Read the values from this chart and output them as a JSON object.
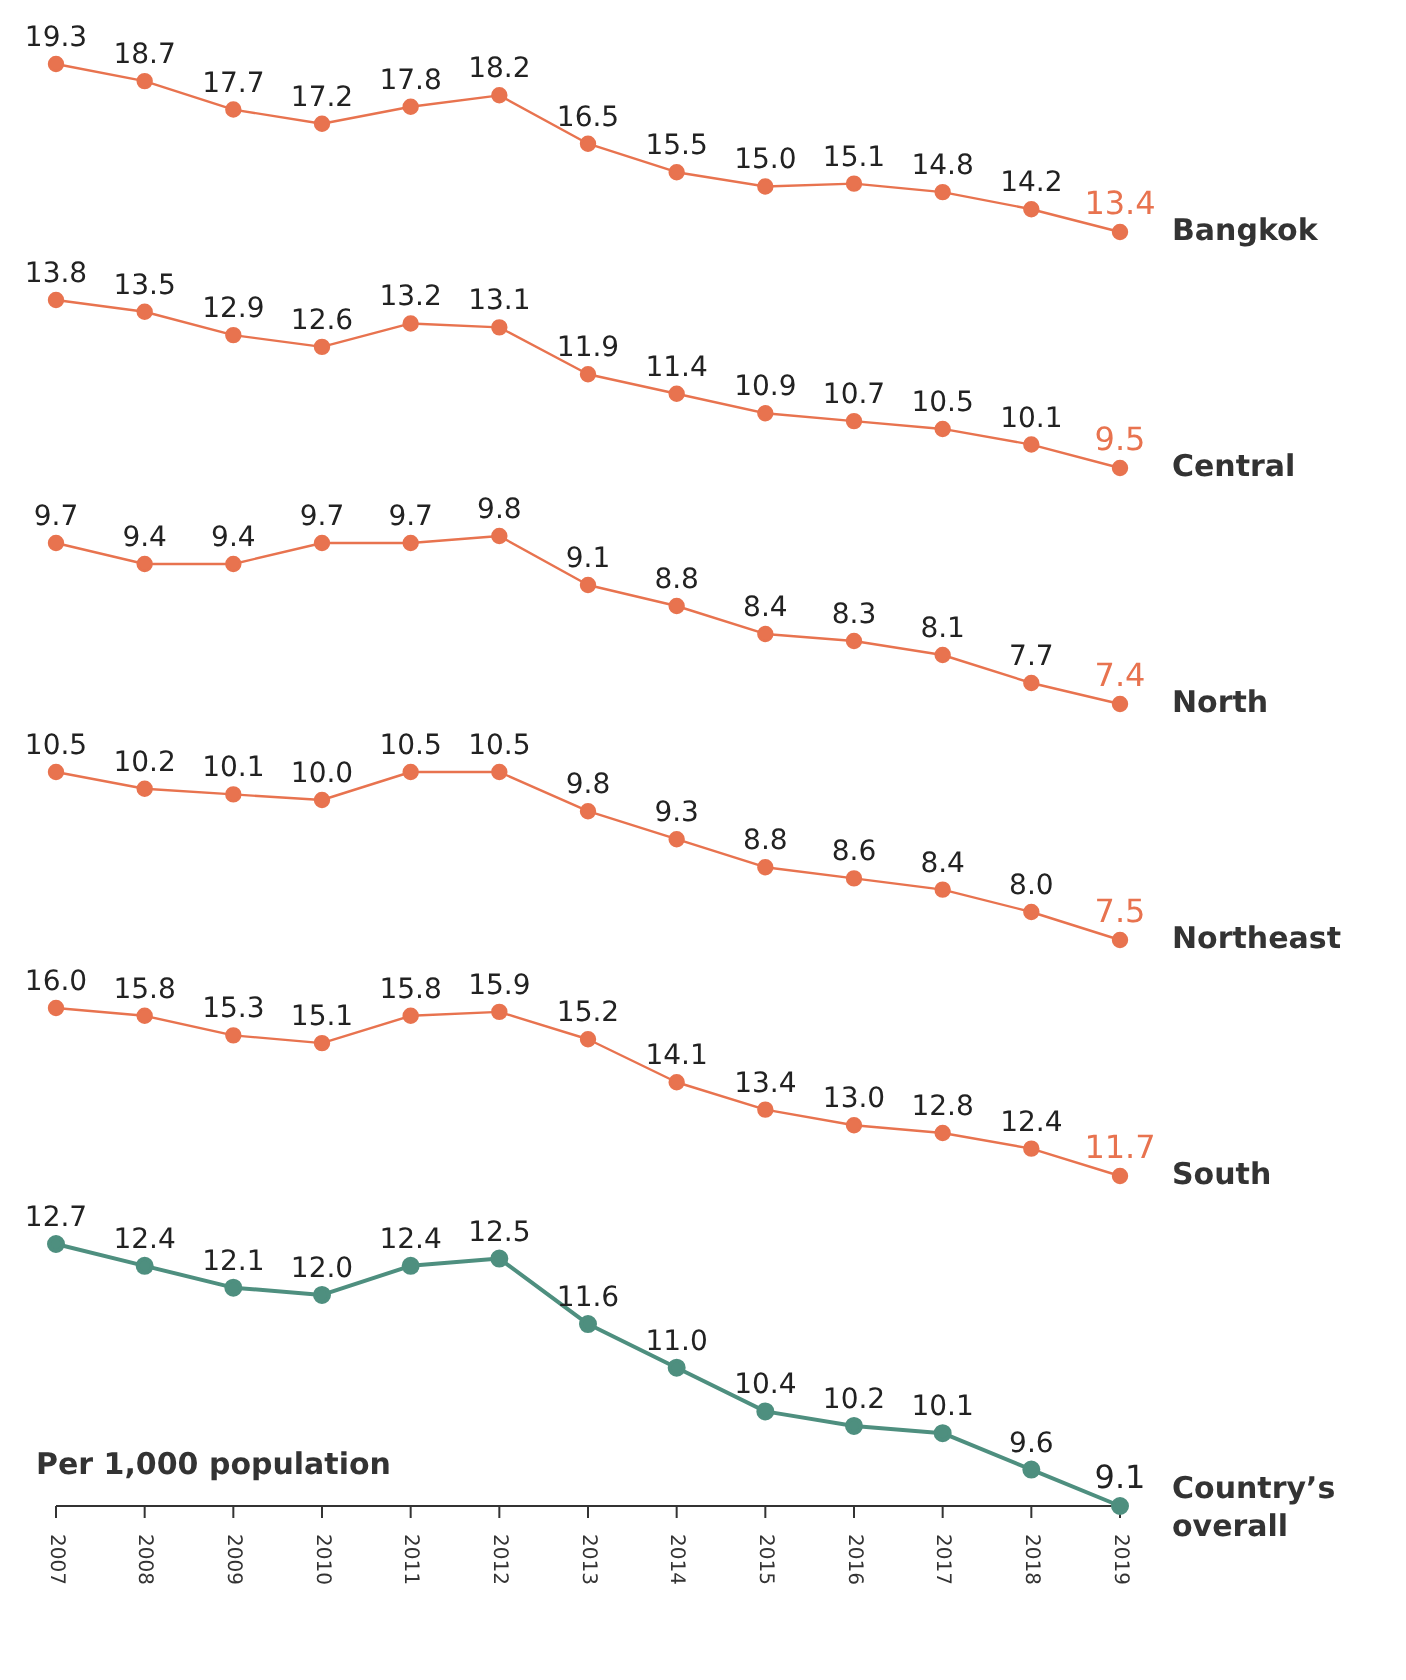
{
  "chart_data": [
    {
      "type": "line",
      "categories": [
        "2007",
        "2008",
        "2009",
        "2010",
        "2011",
        "2012",
        "2013",
        "2014",
        "2015",
        "2016",
        "2017",
        "2018",
        "2019"
      ],
      "tick_labels": false,
      "marker": "circle",
      "series": [
        {
          "name": "Bangkok",
          "color": "#e8734f",
          "values": [
            19.3,
            18.7,
            17.7,
            17.2,
            17.8,
            18.2,
            16.5,
            15.5,
            15.0,
            15.1,
            14.8,
            14.2,
            13.4
          ],
          "value_labels": [
            "19.3",
            "18.7",
            "17.7",
            "17.2",
            "17.8",
            "18.2",
            "16.5",
            "15.5",
            "15.0",
            "15.1",
            "14.8",
            "14.2",
            "13.4"
          ]
        }
      ]
    },
    {
      "type": "line",
      "categories": [
        "2007",
        "2008",
        "2009",
        "2010",
        "2011",
        "2012",
        "2013",
        "2014",
        "2015",
        "2016",
        "2017",
        "2018",
        "2019"
      ],
      "tick_labels": false,
      "marker": "circle",
      "series": [
        {
          "name": "Central",
          "color": "#e8734f",
          "values": [
            13.8,
            13.5,
            12.9,
            12.6,
            13.2,
            13.1,
            11.9,
            11.4,
            10.9,
            10.7,
            10.5,
            10.1,
            9.5
          ],
          "value_labels": [
            "13.8",
            "13.5",
            "12.9",
            "12.6",
            "13.2",
            "13.1",
            "11.9",
            "11.4",
            "10.9",
            "10.7",
            "10.5",
            "10.1",
            "9.5"
          ]
        }
      ]
    },
    {
      "type": "line",
      "categories": [
        "2007",
        "2008",
        "2009",
        "2010",
        "2011",
        "2012",
        "2013",
        "2014",
        "2015",
        "2016",
        "2017",
        "2018",
        "2019"
      ],
      "tick_labels": false,
      "marker": "circle",
      "series": [
        {
          "name": "North",
          "color": "#e8734f",
          "values": [
            9.7,
            9.4,
            9.4,
            9.7,
            9.7,
            9.8,
            9.1,
            8.8,
            8.4,
            8.3,
            8.1,
            7.7,
            7.4
          ],
          "value_labels": [
            "9.7",
            "9.4",
            "9.4",
            "9.7",
            "9.7",
            "9.8",
            "9.1",
            "8.8",
            "8.4",
            "8.3",
            "8.1",
            "7.7",
            "7.4"
          ]
        }
      ]
    },
    {
      "type": "line",
      "categories": [
        "2007",
        "2008",
        "2009",
        "2010",
        "2011",
        "2012",
        "2013",
        "2014",
        "2015",
        "2016",
        "2017",
        "2018",
        "2019"
      ],
      "tick_labels": false,
      "marker": "circle",
      "series": [
        {
          "name": "Northeast",
          "color": "#e8734f",
          "values": [
            10.5,
            10.2,
            10.1,
            10.0,
            10.5,
            10.5,
            9.8,
            9.3,
            8.8,
            8.6,
            8.4,
            8.0,
            7.5
          ],
          "value_labels": [
            "10.5",
            "10.2",
            "10.1",
            "10.0",
            "10.5",
            "10.5",
            "9.8",
            "9.3",
            "8.8",
            "8.6",
            "8.4",
            "8.0",
            "7.5"
          ]
        }
      ]
    },
    {
      "type": "line",
      "categories": [
        "2007",
        "2008",
        "2009",
        "2010",
        "2011",
        "2012",
        "2013",
        "2014",
        "2015",
        "2016",
        "2017",
        "2018",
        "2019"
      ],
      "tick_labels": false,
      "marker": "circle",
      "series": [
        {
          "name": "South",
          "color": "#e8734f",
          "values": [
            16.0,
            15.8,
            15.3,
            15.1,
            15.8,
            15.9,
            15.2,
            14.1,
            13.4,
            13.0,
            12.8,
            12.4,
            11.7
          ],
          "value_labels": [
            "16.0",
            "15.8",
            "15.3",
            "15.1",
            "15.8",
            "15.9",
            "15.2",
            "14.1",
            "13.4",
            "13.0",
            "12.8",
            "12.4",
            "11.7"
          ]
        }
      ]
    },
    {
      "type": "line",
      "categories": [
        "2007",
        "2008",
        "2009",
        "2010",
        "2011",
        "2012",
        "2013",
        "2014",
        "2015",
        "2016",
        "2017",
        "2018",
        "2019"
      ],
      "tick_labels": "x",
      "marker": "circle",
      "annotations": [
        "Per 1,000 population"
      ],
      "series": [
        {
          "name": "Country’s overall",
          "color": "#4e8f7f",
          "values": [
            12.7,
            12.4,
            12.1,
            12.0,
            12.4,
            12.5,
            11.6,
            11.0,
            10.4,
            10.2,
            10.1,
            9.6,
            9.1
          ],
          "value_labels": [
            "12.7",
            "12.4",
            "12.1",
            "12.0",
            "12.4",
            "12.5",
            "11.6",
            "11.0",
            "10.4",
            "10.2",
            "10.1",
            "9.6",
            "9.1"
          ]
        }
      ]
    }
  ]
}
